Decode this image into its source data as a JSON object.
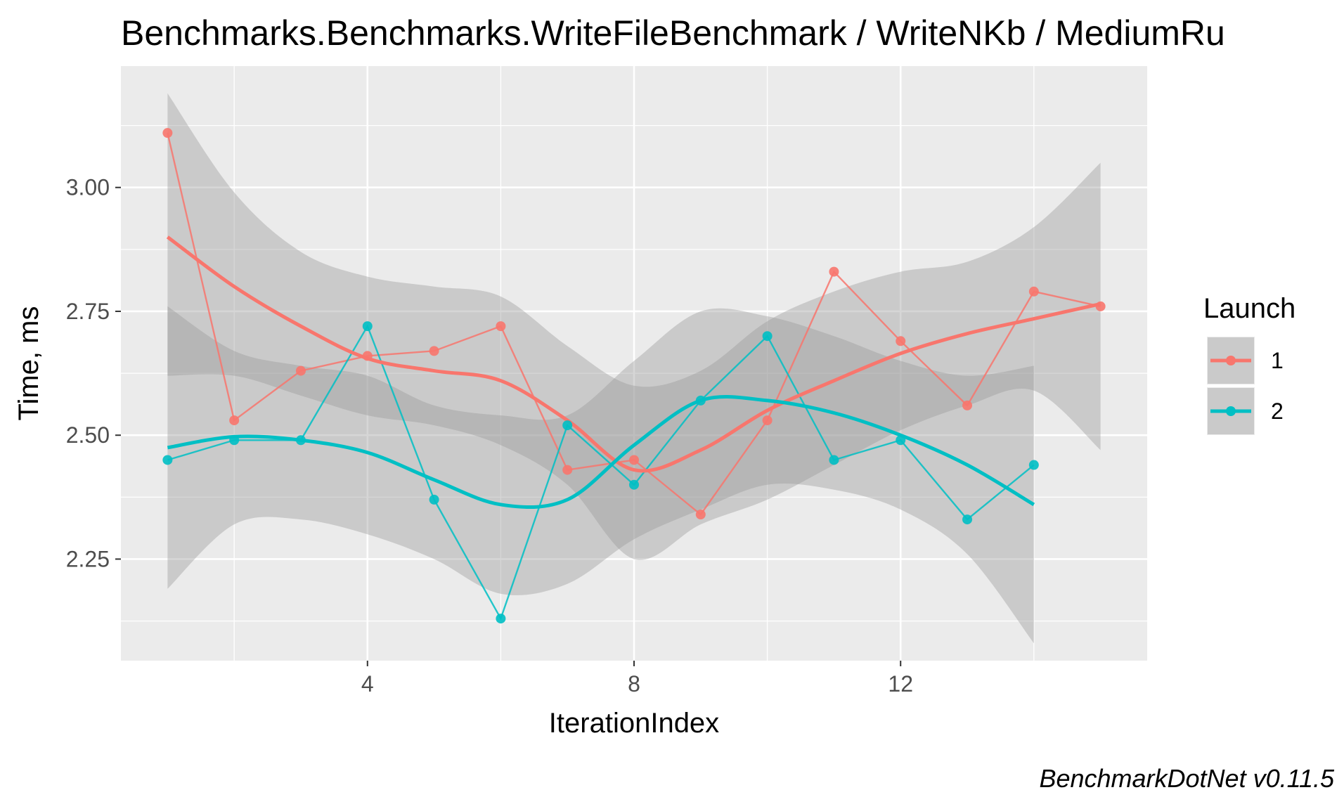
{
  "chart_data": {
    "type": "line",
    "title": "Benchmarks.Benchmarks.WriteFileBenchmark / WriteNKb / MediumRu",
    "xlabel": "IterationIndex",
    "ylabel": "Time, ms",
    "xlim": [
      0.3,
      15.7
    ],
    "ylim": [
      2.045,
      3.245
    ],
    "x_ticks": [
      4,
      8,
      12
    ],
    "x_tick_labels": [
      "4",
      "8",
      "12"
    ],
    "x_minor_ticks": [
      2,
      6,
      10,
      14
    ],
    "y_ticks": [
      2.25,
      2.5,
      2.75,
      3.0
    ],
    "y_tick_labels": [
      "2.25",
      "2.50",
      "2.75",
      "3.00"
    ],
    "y_minor_ticks": [
      2.125,
      2.375,
      2.625,
      2.875,
      3.125
    ],
    "grid": true,
    "background": "#ebebeb",
    "legend": {
      "title": "Launch",
      "position": "right"
    },
    "series": [
      {
        "name": "1",
        "color": "#f8766d",
        "x": [
          1,
          2,
          3,
          4,
          5,
          6,
          7,
          8,
          9,
          10,
          11,
          12,
          13,
          14,
          15
        ],
        "y": [
          3.11,
          2.53,
          2.63,
          2.66,
          2.67,
          2.72,
          2.43,
          2.45,
          2.34,
          2.53,
          2.83,
          2.69,
          2.56,
          2.79,
          2.76
        ],
        "smooth": {
          "x": [
            1,
            2,
            3,
            4,
            5,
            6,
            7,
            8,
            9,
            10,
            11,
            12,
            13,
            14,
            15
          ],
          "y": [
            2.9,
            2.8,
            2.72,
            2.655,
            2.63,
            2.61,
            2.53,
            2.43,
            2.47,
            2.55,
            2.61,
            2.665,
            2.705,
            2.735,
            2.765
          ],
          "lower": [
            2.62,
            2.62,
            2.58,
            2.54,
            2.52,
            2.48,
            2.4,
            2.25,
            2.32,
            2.37,
            2.44,
            2.51,
            2.56,
            2.59,
            2.47
          ],
          "upper": [
            3.19,
            2.99,
            2.87,
            2.82,
            2.8,
            2.78,
            2.68,
            2.6,
            2.63,
            2.73,
            2.79,
            2.83,
            2.85,
            2.92,
            3.05
          ]
        }
      },
      {
        "name": "2",
        "color": "#00bfc4",
        "x": [
          1,
          2,
          3,
          4,
          5,
          6,
          7,
          8,
          9,
          10,
          11,
          12,
          13,
          14
        ],
        "y": [
          2.45,
          2.49,
          2.49,
          2.72,
          2.37,
          2.13,
          2.52,
          2.4,
          2.57,
          2.7,
          2.45,
          2.49,
          2.33,
          2.44
        ],
        "smooth": {
          "x": [
            1,
            2,
            3,
            4,
            5,
            6,
            7,
            8,
            9,
            10,
            11,
            12,
            13,
            14
          ],
          "y": [
            2.475,
            2.497,
            2.49,
            2.465,
            2.41,
            2.36,
            2.37,
            2.48,
            2.57,
            2.57,
            2.545,
            2.5,
            2.44,
            2.36
          ],
          "lower": [
            2.19,
            2.32,
            2.33,
            2.3,
            2.25,
            2.18,
            2.2,
            2.29,
            2.35,
            2.4,
            2.39,
            2.35,
            2.26,
            2.08
          ],
          "upper": [
            2.76,
            2.67,
            2.64,
            2.62,
            2.56,
            2.54,
            2.54,
            2.65,
            2.75,
            2.74,
            2.7,
            2.65,
            2.62,
            2.64
          ]
        }
      }
    ]
  },
  "caption": "BenchmarkDotNet v0.11.5"
}
